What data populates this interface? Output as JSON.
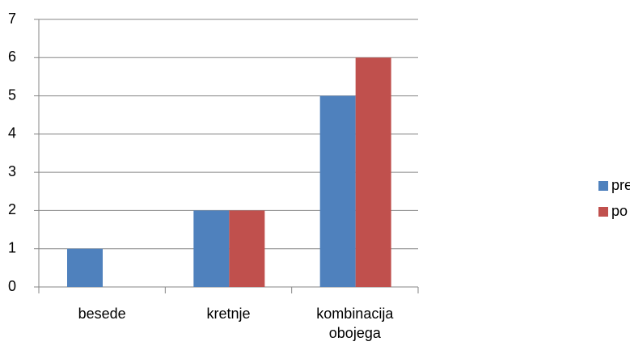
{
  "chart_data": {
    "type": "bar",
    "categories": [
      "besede",
      "kretnje",
      "kombinacija obojega"
    ],
    "series": [
      {
        "name": "pred predavanjem",
        "color": "#4f81bd",
        "values": [
          1,
          2,
          5
        ]
      },
      {
        "name": "po predavanju",
        "color": "#c0504d",
        "values": [
          0,
          2,
          6
        ]
      }
    ],
    "ylim": [
      0,
      7
    ],
    "yticks": [
      0,
      1,
      2,
      3,
      4,
      5,
      6,
      7
    ],
    "grid": true,
    "legend": "right"
  }
}
